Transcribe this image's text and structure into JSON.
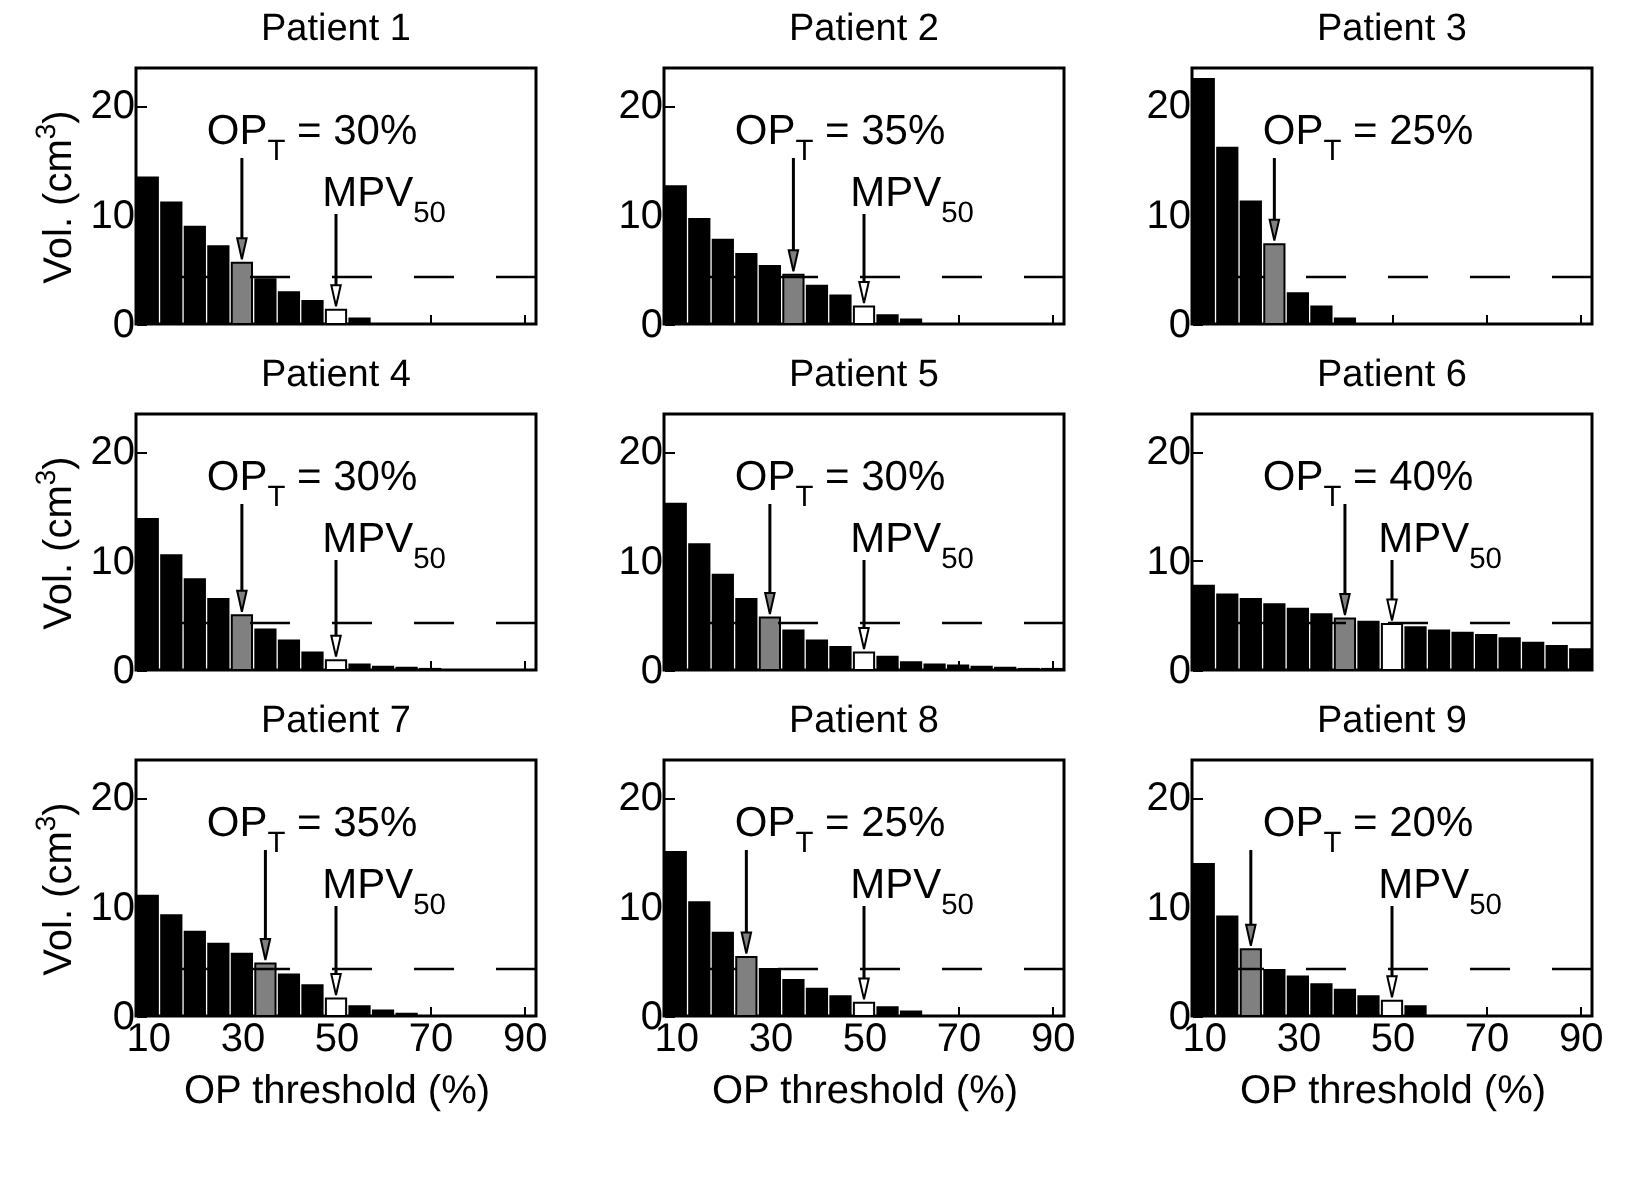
{
  "chart_data": [
    {
      "type": "bar",
      "title": "Patient 1",
      "ylabel": "Vol. (cm$^{3}$)",
      "x": [
        10,
        15,
        20,
        25,
        30,
        35,
        40,
        45,
        50,
        55,
        60,
        65,
        70,
        75,
        80,
        85,
        90
      ],
      "values": [
        13.4,
        11.1,
        8.9,
        7.1,
        5.6,
        4.1,
        2.9,
        2.1,
        1.3,
        0.5,
        0,
        0,
        0,
        0,
        0,
        0,
        0
      ],
      "colors": [
        "#000000",
        "#000000",
        "#000000",
        "#000000",
        "#808080",
        "#000000",
        "#000000",
        "#000000",
        "#ffffff",
        "#000000",
        "#000000",
        "#000000",
        "#000000",
        "#000000",
        "#000000",
        "#000000",
        "#000000"
      ],
      "xlim": [
        7.5,
        92.5
      ],
      "ylim": [
        0,
        23.4
      ],
      "xticks": [
        10,
        30,
        50,
        70,
        90
      ],
      "yticks": [
        0,
        10,
        20
      ],
      "tick_labels": "y",
      "grid": false,
      "ref_lines": [
        {
          "axis": "y",
          "value": 4.3,
          "color": "#000000",
          "line_style": "dashed"
        }
      ],
      "annotations": [
        {
          "text": "OP$_{T}$ = 30%",
          "x": 30,
          "y": 5.6
        },
        {
          "text": "MPV$_{50}$",
          "x": 50,
          "y": 1.3
        }
      ]
    },
    {
      "type": "bar",
      "title": "Patient 2",
      "x": [
        10,
        15,
        20,
        25,
        30,
        35,
        40,
        45,
        50,
        55,
        60,
        65,
        70,
        75,
        80,
        85,
        90
      ],
      "values": [
        12.6,
        9.6,
        7.7,
        6.4,
        5.3,
        4.5,
        3.5,
        2.6,
        1.6,
        0.8,
        0.4,
        0,
        0,
        0,
        0,
        0,
        0
      ],
      "colors": [
        "#000000",
        "#000000",
        "#000000",
        "#000000",
        "#000000",
        "#808080",
        "#000000",
        "#000000",
        "#ffffff",
        "#000000",
        "#000000",
        "#000000",
        "#000000",
        "#000000",
        "#000000",
        "#000000",
        "#000000"
      ],
      "xlim": [
        7.5,
        92.5
      ],
      "ylim": [
        0,
        23.4
      ],
      "xticks": [
        10,
        30,
        50,
        70,
        90
      ],
      "yticks": [
        0,
        10,
        20
      ],
      "tick_labels": "y",
      "grid": false,
      "ref_lines": [
        {
          "axis": "y",
          "value": 4.3,
          "color": "#000000",
          "line_style": "dashed"
        }
      ],
      "annotations": [
        {
          "text": "OP$_{T}$ = 35%",
          "x": 35,
          "y": 4.5
        },
        {
          "text": "MPV$_{50}$",
          "x": 50,
          "y": 1.6
        }
      ]
    },
    {
      "type": "bar",
      "title": "Patient 3",
      "x": [
        10,
        15,
        20,
        25,
        30,
        35,
        40,
        45,
        50,
        55,
        60,
        65,
        70,
        75,
        80,
        85,
        90
      ],
      "values": [
        22.4,
        16.1,
        11.2,
        7.3,
        2.8,
        1.6,
        0.5,
        0,
        0,
        0,
        0,
        0,
        0,
        0,
        0,
        0,
        0
      ],
      "colors": [
        "#000000",
        "#000000",
        "#000000",
        "#808080",
        "#000000",
        "#000000",
        "#000000",
        "#000000",
        "#000000",
        "#000000",
        "#000000",
        "#000000",
        "#000000",
        "#000000",
        "#000000",
        "#000000",
        "#000000"
      ],
      "xlim": [
        7.5,
        92.5
      ],
      "ylim": [
        0,
        23.4
      ],
      "xticks": [
        10,
        30,
        50,
        70,
        90
      ],
      "yticks": [
        0,
        10,
        20
      ],
      "tick_labels": "y",
      "grid": false,
      "ref_lines": [
        {
          "axis": "y",
          "value": 4.3,
          "color": "#000000",
          "line_style": "dashed"
        }
      ],
      "annotations": [
        {
          "text": "OP$_{T}$ = 25%",
          "x": 25,
          "y": 7.3
        }
      ]
    },
    {
      "type": "bar",
      "title": "Patient 4",
      "ylabel": "Vol. (cm$^{3}$)",
      "x": [
        10,
        15,
        20,
        25,
        30,
        35,
        40,
        45,
        50,
        55,
        60,
        65,
        70,
        75,
        80,
        85,
        90
      ],
      "values": [
        13.8,
        10.5,
        8.3,
        6.5,
        5.0,
        3.7,
        2.7,
        1.6,
        0.9,
        0.5,
        0.3,
        0.2,
        0.1,
        0,
        0,
        0,
        0
      ],
      "colors": [
        "#000000",
        "#000000",
        "#000000",
        "#000000",
        "#808080",
        "#000000",
        "#000000",
        "#000000",
        "#ffffff",
        "#000000",
        "#000000",
        "#000000",
        "#000000",
        "#000000",
        "#000000",
        "#000000",
        "#000000"
      ],
      "xlim": [
        7.5,
        92.5
      ],
      "ylim": [
        0,
        23.4
      ],
      "xticks": [
        10,
        30,
        50,
        70,
        90
      ],
      "yticks": [
        0,
        10,
        20
      ],
      "tick_labels": "y",
      "grid": false,
      "ref_lines": [
        {
          "axis": "y",
          "value": 4.3,
          "color": "#000000",
          "line_style": "dashed"
        }
      ],
      "annotations": [
        {
          "text": "OP$_{T}$ = 30%",
          "x": 30,
          "y": 5.0
        },
        {
          "text": "MPV$_{50}$",
          "x": 50,
          "y": 0.9
        }
      ]
    },
    {
      "type": "bar",
      "title": "Patient 5",
      "x": [
        10,
        15,
        20,
        25,
        30,
        35,
        40,
        45,
        50,
        55,
        60,
        65,
        70,
        75,
        80,
        85,
        90
      ],
      "values": [
        15.2,
        11.5,
        8.7,
        6.5,
        4.8,
        3.6,
        2.7,
        2.1,
        1.6,
        1.2,
        0.7,
        0.5,
        0.4,
        0.3,
        0.2,
        0.1,
        0.1
      ],
      "colors": [
        "#000000",
        "#000000",
        "#000000",
        "#000000",
        "#808080",
        "#000000",
        "#000000",
        "#000000",
        "#ffffff",
        "#000000",
        "#000000",
        "#000000",
        "#000000",
        "#000000",
        "#000000",
        "#000000",
        "#000000"
      ],
      "xlim": [
        7.5,
        92.5
      ],
      "ylim": [
        0,
        23.4
      ],
      "xticks": [
        10,
        30,
        50,
        70,
        90
      ],
      "yticks": [
        0,
        10,
        20
      ],
      "tick_labels": "y",
      "grid": false,
      "ref_lines": [
        {
          "axis": "y",
          "value": 4.3,
          "color": "#000000",
          "line_style": "dashed"
        }
      ],
      "annotations": [
        {
          "text": "OP$_{T}$ = 30%",
          "x": 30,
          "y": 4.8
        },
        {
          "text": "MPV$_{50}$",
          "x": 50,
          "y": 1.6
        }
      ]
    },
    {
      "type": "bar",
      "title": "Patient 6",
      "x": [
        10,
        15,
        20,
        25,
        30,
        35,
        40,
        45,
        50,
        55,
        60,
        65,
        70,
        75,
        80,
        85,
        90
      ],
      "values": [
        7.7,
        6.9,
        6.5,
        6.0,
        5.6,
        5.1,
        4.7,
        4.4,
        4.2,
        3.9,
        3.6,
        3.4,
        3.2,
        2.9,
        2.5,
        2.2,
        1.9
      ],
      "colors": [
        "#000000",
        "#000000",
        "#000000",
        "#000000",
        "#000000",
        "#000000",
        "#808080",
        "#000000",
        "#ffffff",
        "#000000",
        "#000000",
        "#000000",
        "#000000",
        "#000000",
        "#000000",
        "#000000",
        "#000000"
      ],
      "xlim": [
        7.5,
        92.5
      ],
      "ylim": [
        0,
        23.4
      ],
      "xticks": [
        10,
        30,
        50,
        70,
        90
      ],
      "yticks": [
        0,
        10,
        20
      ],
      "tick_labels": "y",
      "grid": false,
      "ref_lines": [
        {
          "axis": "y",
          "value": 4.3,
          "color": "#000000",
          "line_style": "dashed"
        }
      ],
      "annotations": [
        {
          "text": "OP$_{T}$ = 40%",
          "x": 40,
          "y": 4.7
        },
        {
          "text": "MPV$_{50}$",
          "x": 50,
          "y": 4.2
        }
      ]
    },
    {
      "type": "bar",
      "title": "Patient 7",
      "xlabel": "OP threshold (%)",
      "ylabel": "Vol. (cm$^{3}$)",
      "x": [
        10,
        15,
        20,
        25,
        30,
        35,
        40,
        45,
        50,
        55,
        60,
        65,
        70,
        75,
        80,
        85,
        90
      ],
      "values": [
        11.0,
        9.2,
        7.7,
        6.6,
        5.7,
        4.8,
        3.8,
        2.8,
        1.6,
        0.9,
        0.5,
        0.2,
        0,
        0,
        0,
        0,
        0
      ],
      "colors": [
        "#000000",
        "#000000",
        "#000000",
        "#000000",
        "#000000",
        "#808080",
        "#000000",
        "#000000",
        "#ffffff",
        "#000000",
        "#000000",
        "#000000",
        "#000000",
        "#000000",
        "#000000",
        "#000000",
        "#000000"
      ],
      "xlim": [
        7.5,
        92.5
      ],
      "ylim": [
        0,
        23.4
      ],
      "xticks": [
        10,
        30,
        50,
        70,
        90
      ],
      "yticks": [
        0,
        10,
        20
      ],
      "grid": false,
      "ref_lines": [
        {
          "axis": "y",
          "value": 4.3,
          "color": "#000000",
          "line_style": "dashed"
        }
      ],
      "annotations": [
        {
          "text": "OP$_{T}$ = 35%",
          "x": 35,
          "y": 4.8
        },
        {
          "text": "MPV$_{50}$",
          "x": 50,
          "y": 1.6
        }
      ]
    },
    {
      "type": "bar",
      "title": "Patient 8",
      "xlabel": "OP threshold (%)",
      "x": [
        10,
        15,
        20,
        25,
        30,
        35,
        40,
        45,
        50,
        55,
        60,
        65,
        70,
        75,
        80,
        85,
        90
      ],
      "values": [
        15.0,
        10.4,
        7.6,
        5.4,
        4.3,
        3.3,
        2.5,
        1.8,
        1.2,
        0.8,
        0.4,
        0,
        0,
        0,
        0,
        0,
        0
      ],
      "colors": [
        "#000000",
        "#000000",
        "#000000",
        "#808080",
        "#000000",
        "#000000",
        "#000000",
        "#000000",
        "#ffffff",
        "#000000",
        "#000000",
        "#000000",
        "#000000",
        "#000000",
        "#000000",
        "#000000",
        "#000000"
      ],
      "xlim": [
        7.5,
        92.5
      ],
      "ylim": [
        0,
        23.4
      ],
      "xticks": [
        10,
        30,
        50,
        70,
        90
      ],
      "yticks": [
        0,
        10,
        20
      ],
      "grid": false,
      "ref_lines": [
        {
          "axis": "y",
          "value": 4.3,
          "color": "#000000",
          "line_style": "dashed"
        }
      ],
      "annotations": [
        {
          "text": "OP$_{T}$ = 25%",
          "x": 25,
          "y": 5.4
        },
        {
          "text": "MPV$_{50}$",
          "x": 50,
          "y": 1.2
        }
      ]
    },
    {
      "type": "bar",
      "title": "Patient 9",
      "xlabel": "OP threshold (%)",
      "x": [
        10,
        15,
        20,
        25,
        30,
        35,
        40,
        45,
        50,
        55,
        60,
        65,
        70,
        75,
        80,
        85,
        90
      ],
      "values": [
        13.9,
        9.1,
        6.1,
        4.2,
        3.6,
        2.9,
        2.4,
        1.8,
        1.4,
        0.9,
        0,
        0,
        0,
        0,
        0,
        0,
        0
      ],
      "colors": [
        "#000000",
        "#000000",
        "#808080",
        "#000000",
        "#000000",
        "#000000",
        "#000000",
        "#000000",
        "#ffffff",
        "#000000",
        "#000000",
        "#000000",
        "#000000",
        "#000000",
        "#000000",
        "#000000",
        "#000000"
      ],
      "xlim": [
        7.5,
        92.5
      ],
      "ylim": [
        0,
        23.4
      ],
      "xticks": [
        10,
        30,
        50,
        70,
        90
      ],
      "yticks": [
        0,
        10,
        20
      ],
      "grid": false,
      "ref_lines": [
        {
          "axis": "y",
          "value": 4.3,
          "color": "#000000",
          "line_style": "dashed"
        }
      ],
      "annotations": [
        {
          "text": "OP$_{T}$ = 20%",
          "x": 20,
          "y": 6.1
        },
        {
          "text": "MPV$_{50}$",
          "x": 50,
          "y": 1.4
        }
      ]
    }
  ]
}
